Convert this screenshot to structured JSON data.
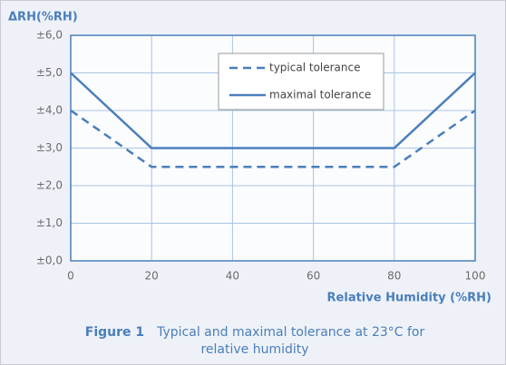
{
  "chart_data": {
    "type": "line",
    "ylabel": "ΔRH(%RH)",
    "xlabel": "Relative Humidity (%RH)",
    "caption_label": "Figure 1",
    "caption": "Typical and maximal tolerance at 23°C for relative humidity",
    "x": [
      0,
      20,
      80,
      100
    ],
    "series": [
      {
        "name": "typical tolerance",
        "color": "#4a7ebb",
        "dash": true,
        "values": [
          4,
          2.5,
          2.5,
          4
        ]
      },
      {
        "name": "maximal tolerance",
        "color": "#4a7ebb",
        "dash": false,
        "values": [
          5,
          3,
          3,
          5
        ]
      }
    ],
    "xlim": [
      0,
      100
    ],
    "xticks": [
      0,
      20,
      40,
      60,
      80,
      100
    ],
    "ylim": [
      0,
      6
    ],
    "yticks": [
      {
        "value": 0,
        "label": "±0,0"
      },
      {
        "value": 1,
        "label": "±1,0"
      },
      {
        "value": 2,
        "label": "±2,0"
      },
      {
        "value": 3,
        "label": "±3,0"
      },
      {
        "value": 4,
        "label": "±4,0"
      },
      {
        "value": 5,
        "label": "±5,0"
      },
      {
        "value": 6,
        "label": "±6,0"
      }
    ],
    "grid": true
  }
}
